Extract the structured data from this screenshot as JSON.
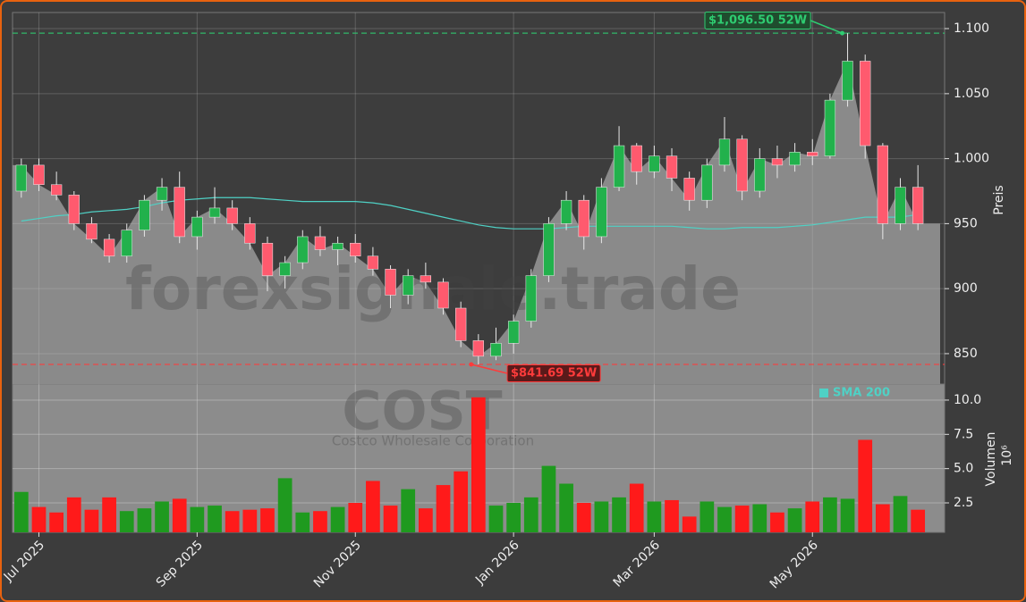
{
  "chart_data": {
    "type": "candlestick",
    "watermark": "forexsignale.trade",
    "symbol": "COST",
    "company": "Costco Wholesale Corporation",
    "categories": [
      null,
      "Jul 2025",
      null,
      null,
      null,
      null,
      null,
      null,
      null,
      null,
      "Sep 2025",
      null,
      null,
      null,
      null,
      null,
      null,
      null,
      null,
      "Nov 2025",
      null,
      null,
      null,
      null,
      null,
      null,
      null,
      null,
      "Jan 2026",
      null,
      null,
      null,
      null,
      null,
      null,
      null,
      "Mar 2026",
      null,
      null,
      null,
      null,
      null,
      null,
      null,
      null,
      "May 2026",
      null,
      null,
      null,
      null,
      null,
      null
    ],
    "open": [
      975,
      995,
      980,
      972,
      950,
      938,
      925,
      945,
      968,
      978,
      940,
      955,
      962,
      950,
      935,
      910,
      920,
      940,
      930,
      935,
      925,
      915,
      895,
      910,
      905,
      885,
      860,
      848,
      858,
      875,
      910,
      950,
      968,
      940,
      978,
      1010,
      990,
      1002,
      985,
      968,
      995,
      1015,
      975,
      1000,
      995,
      1005,
      1002,
      1045,
      1075,
      1010,
      950,
      978
    ],
    "high": [
      1000,
      1000,
      990,
      975,
      955,
      942,
      950,
      972,
      985,
      990,
      960,
      978,
      968,
      955,
      940,
      925,
      945,
      948,
      940,
      942,
      932,
      918,
      915,
      920,
      908,
      890,
      865,
      870,
      880,
      915,
      955,
      975,
      972,
      985,
      1025,
      1012,
      1010,
      1008,
      990,
      1000,
      1032,
      1018,
      1008,
      1010,
      1012,
      1015,
      1050,
      1096.5,
      1080,
      1012,
      985,
      995
    ],
    "low": [
      970,
      975,
      968,
      945,
      935,
      920,
      920,
      940,
      960,
      935,
      930,
      950,
      945,
      930,
      898,
      900,
      915,
      925,
      918,
      920,
      910,
      885,
      888,
      900,
      880,
      855,
      841.69,
      845,
      850,
      870,
      905,
      945,
      930,
      935,
      975,
      980,
      985,
      975,
      960,
      962,
      990,
      968,
      970,
      985,
      990,
      995,
      1000,
      1040,
      1000,
      938,
      945,
      945
    ],
    "close": [
      995,
      980,
      972,
      950,
      938,
      925,
      945,
      968,
      978,
      940,
      955,
      962,
      950,
      935,
      910,
      920,
      940,
      930,
      935,
      925,
      915,
      895,
      910,
      905,
      885,
      860,
      848,
      858,
      875,
      910,
      950,
      968,
      940,
      978,
      1010,
      990,
      1002,
      985,
      968,
      995,
      1015,
      975,
      1000,
      995,
      1005,
      1002,
      1045,
      1075,
      1010,
      950,
      978,
      950
    ],
    "up_color": "#22b14c",
    "down_color": "#ff5a6e",
    "area_color": "#8a8a8a",
    "ylim": [
      826.6,
      1112.4
    ],
    "yticks": [
      850,
      900,
      950,
      {
        "value": 1000,
        "label": "1.000"
      },
      {
        "value": 1050,
        "label": "1.050"
      },
      {
        "value": 1100,
        "label": "1.100"
      }
    ],
    "y_label": "Preis",
    "grid": true,
    "sma": {
      "name": "SMA 200",
      "color": "#4fd1c5",
      "values": [
        952,
        954,
        956,
        957,
        959,
        960,
        961,
        963,
        966,
        968,
        969,
        970,
        970,
        970,
        969,
        968,
        967,
        967,
        967,
        967,
        966,
        964,
        961,
        958,
        955,
        952,
        949,
        947,
        946,
        946,
        946,
        947,
        948,
        948,
        948,
        948,
        948,
        948,
        947,
        946,
        946,
        947,
        947,
        947,
        948,
        949,
        951,
        953,
        955,
        955,
        955,
        957
      ]
    },
    "high_52w": {
      "value": 1096.5,
      "label": "$1,096.50 52W",
      "color": "#2ecc71"
    },
    "low_52w": {
      "value": 841.69,
      "label": "$841.69 52W",
      "color": "#ff3b3b"
    },
    "volume": {
      "values": [
        3.3,
        2.2,
        1.8,
        2.9,
        2.0,
        2.9,
        1.9,
        2.1,
        2.6,
        2.8,
        2.2,
        2.3,
        1.9,
        2.0,
        2.1,
        4.3,
        1.8,
        1.9,
        2.2,
        2.5,
        4.1,
        2.3,
        3.5,
        2.1,
        3.8,
        4.8,
        10.2,
        2.3,
        2.5,
        2.9,
        5.2,
        3.9,
        2.5,
        2.6,
        2.9,
        3.9,
        2.6,
        2.7,
        1.5,
        2.6,
        2.2,
        2.3,
        2.4,
        1.8,
        2.1,
        2.6,
        2.9,
        2.8,
        7.1,
        2.4,
        3.0,
        2.0
      ],
      "ylim": [
        0.35,
        11.17
      ],
      "yticks": [
        2.5,
        {
          "value": 5,
          "label": "5.0"
        },
        7.5,
        {
          "value": 10,
          "label": "10.0"
        }
      ],
      "y_label": "Volumen",
      "exponent": "10⁶"
    }
  }
}
